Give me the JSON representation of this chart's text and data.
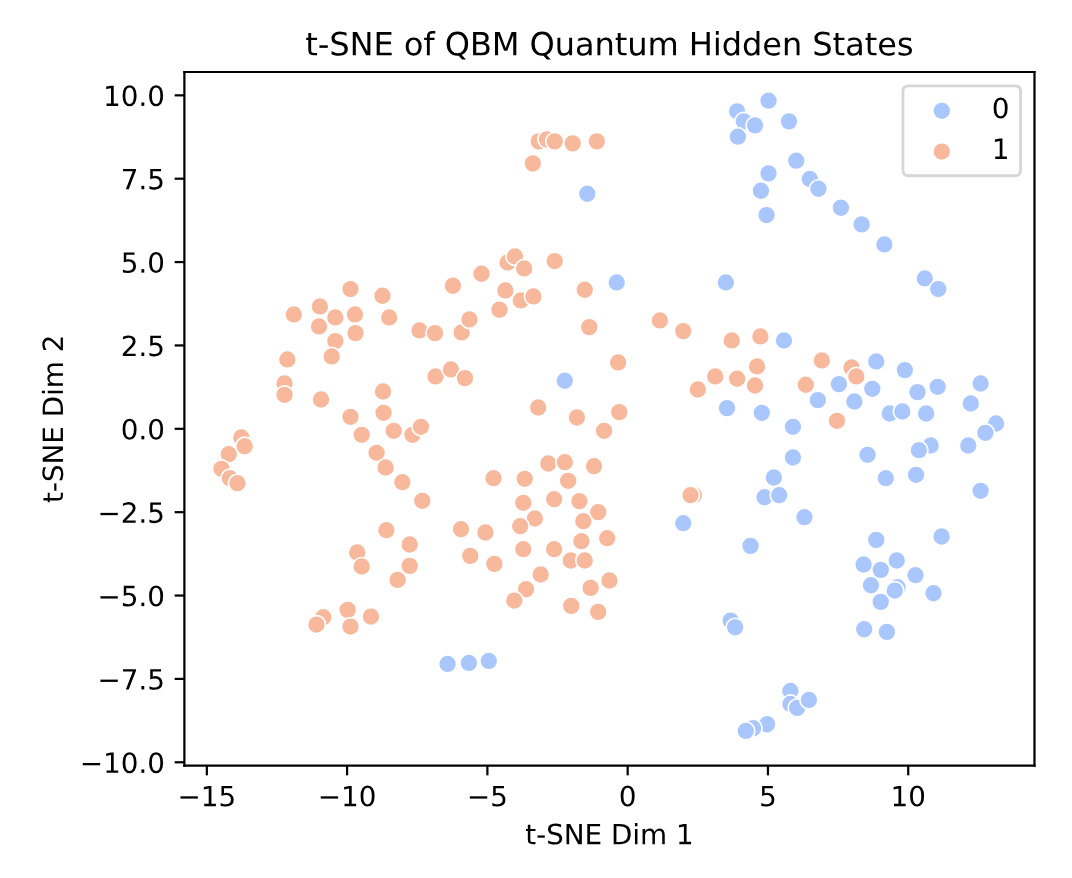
{
  "chart_data": {
    "type": "scatter",
    "title": "t-SNE of QBM Quantum Hidden States",
    "xlabel": "t-SNE Dim 1",
    "ylabel": "t-SNE Dim 2",
    "xlim": [
      -15.8,
      14.5
    ],
    "ylim": [
      -10.1,
      10.7
    ],
    "xticks": [
      {
        "value": -15,
        "label": "−15"
      },
      {
        "value": -10,
        "label": "−10"
      },
      {
        "value": -5,
        "label": "−5"
      },
      0,
      5,
      10
    ],
    "yticks": [
      {
        "value": -10,
        "label": "−10.0"
      },
      {
        "value": -7.5,
        "label": "−7.5"
      },
      {
        "value": -5,
        "label": "−5.0"
      },
      {
        "value": -2.5,
        "label": "−2.5"
      },
      {
        "value": 0,
        "label": "0.0"
      },
      {
        "value": 2.5,
        "label": "2.5"
      },
      {
        "value": 5,
        "label": "5.0"
      },
      {
        "value": 7.5,
        "label": "7.5"
      },
      {
        "value": 10,
        "label": "10.0"
      }
    ],
    "grid": false,
    "legend": "top right",
    "marker": "circle",
    "series": [
      {
        "name": "0",
        "color": "#aac7fd",
        "x": [
          -6.42,
          -5.66,
          -4.95,
          -1.44,
          -0.39,
          -2.24,
          5.02,
          3.9,
          4.14,
          4.54,
          3.93,
          5.75,
          6.01,
          6.49,
          6.8,
          5.02,
          4.75,
          4.95,
          7.6,
          8.34,
          9.15,
          10.59,
          11.07,
          3.5,
          5.57,
          8.86,
          9.88,
          7.53,
          8.72,
          10.33,
          11.05,
          12.58,
          6.78,
          8.08,
          3.54,
          4.78,
          9.34,
          9.79,
          10.64,
          12.23,
          13.13,
          5.89,
          12.75,
          12.14,
          10.8,
          10.38,
          8.55,
          5.89,
          9.2,
          10.28,
          5.21,
          4.88,
          5.4,
          12.58,
          1.98,
          6.3,
          4.38,
          8.86,
          11.19,
          8.41,
          9.02,
          9.59,
          10.26,
          8.67,
          9.62,
          9.52,
          10.9,
          9.02,
          8.43,
          9.24,
          3.67,
          3.83,
          5.8,
          5.8,
          6.04,
          6.46,
          4.97,
          4.47,
          4.21
        ],
        "values": [
          -7.05,
          -7.02,
          -6.96,
          7.05,
          4.39,
          1.44,
          9.84,
          9.52,
          9.22,
          9.1,
          8.76,
          9.22,
          8.04,
          7.49,
          7.2,
          7.66,
          7.14,
          6.41,
          6.63,
          6.13,
          5.53,
          4.51,
          4.19,
          4.39,
          2.65,
          2.02,
          1.76,
          1.34,
          1.2,
          1.1,
          1.26,
          1.36,
          0.86,
          0.82,
          0.62,
          0.48,
          0.46,
          0.52,
          0.46,
          0.76,
          0.16,
          0.06,
          -0.12,
          -0.5,
          -0.5,
          -0.64,
          -0.78,
          -0.86,
          -1.48,
          -1.38,
          -1.46,
          -2.05,
          -1.99,
          -1.86,
          -2.83,
          -2.65,
          -3.51,
          -3.33,
          -3.23,
          -4.07,
          -4.23,
          -3.95,
          -4.39,
          -4.69,
          -4.75,
          -4.85,
          -4.93,
          -5.19,
          -6.01,
          -6.09,
          -5.75,
          -5.95,
          -7.86,
          -8.25,
          -8.37,
          -8.13,
          -8.86,
          -8.98,
          -9.06
        ]
      },
      {
        "name": "1",
        "color": "#f7b89c",
        "x": [
          -3.17,
          -2.88,
          -2.6,
          -1.96,
          -1.1,
          -3.38,
          -11.9,
          -10.97,
          -9.88,
          -8.74,
          -10.42,
          -9.72,
          -8.5,
          -11.0,
          -10.42,
          -9.7,
          -10.55,
          -12.13,
          -12.23,
          -12.23,
          -10.93,
          -8.72,
          -8.7,
          -9.88,
          -7.42,
          -6.87,
          -6.23,
          -5.92,
          -5.64,
          -5.21,
          -6.85,
          -6.3,
          -5.8,
          -4.57,
          -4.36,
          -4.28,
          -4.02,
          -3.69,
          -3.81,
          -3.36,
          -2.6,
          -1.53,
          -1.37,
          -3.19,
          -1.81,
          -0.34,
          -0.3,
          1.15,
          1.98,
          3.71,
          4.73,
          3.12,
          3.9,
          4.61,
          4.54,
          2.5,
          6.92,
          7.98,
          8.15,
          6.35,
          7.46,
          -0.84,
          2.36,
          2.24,
          -13.77,
          -13.65,
          -14.22,
          -14.48,
          -14.18,
          -13.91,
          -9.48,
          -8.34,
          -7.67,
          -7.37,
          -8.95,
          -8.63,
          -8.03,
          -7.32,
          -8.6,
          -7.77,
          -9.64,
          -9.48,
          -7.77,
          -8.2,
          -10.85,
          -11.09,
          -9.98,
          -9.88,
          -9.15,
          -5.94,
          -5.61,
          -5.07,
          -4.75,
          -4.78,
          -3.67,
          -2.83,
          -2.24,
          -1.2,
          -2.12,
          -3.72,
          -2.62,
          -1.72,
          -1.05,
          -1.58,
          -3.31,
          -3.83,
          -0.73,
          -1.65,
          -3.72,
          -2.62,
          -2.03,
          -1.53,
          -3.1,
          -3.62,
          -4.04,
          -0.65,
          -1.32,
          -2.01,
          -1.05
        ],
        "values": [
          8.62,
          8.68,
          8.62,
          8.56,
          8.62,
          7.96,
          3.43,
          3.67,
          4.19,
          3.99,
          3.34,
          3.43,
          3.34,
          3.07,
          2.63,
          2.87,
          2.17,
          2.08,
          1.36,
          1.02,
          0.88,
          1.12,
          0.48,
          0.36,
          2.95,
          2.87,
          4.29,
          2.89,
          3.28,
          4.65,
          1.57,
          1.78,
          1.52,
          3.57,
          4.15,
          4.99,
          5.17,
          4.81,
          3.85,
          3.97,
          5.03,
          4.17,
          3.05,
          0.64,
          0.34,
          1.99,
          0.5,
          3.25,
          2.93,
          2.65,
          2.77,
          1.57,
          1.5,
          1.87,
          1.3,
          1.18,
          2.05,
          1.84,
          1.57,
          1.32,
          0.24,
          -0.06,
          -1.99,
          -1.99,
          -0.26,
          -0.52,
          -0.76,
          -1.2,
          -1.48,
          -1.63,
          -0.18,
          -0.06,
          -0.18,
          0.06,
          -0.72,
          -1.16,
          -1.6,
          -2.16,
          -3.04,
          -3.47,
          -3.71,
          -4.13,
          -4.11,
          -4.53,
          -5.65,
          -5.87,
          -5.43,
          -5.93,
          -5.63,
          -3.01,
          -3.81,
          -3.11,
          -4.05,
          -1.48,
          -1.5,
          -1.04,
          -1.0,
          -1.12,
          -1.56,
          -2.22,
          -2.11,
          -2.17,
          -2.5,
          -2.77,
          -2.69,
          -2.92,
          -3.28,
          -3.37,
          -3.61,
          -3.61,
          -3.95,
          -3.95,
          -4.37,
          -4.81,
          -5.15,
          -4.55,
          -4.77,
          -5.31,
          -5.49
        ]
      }
    ]
  }
}
